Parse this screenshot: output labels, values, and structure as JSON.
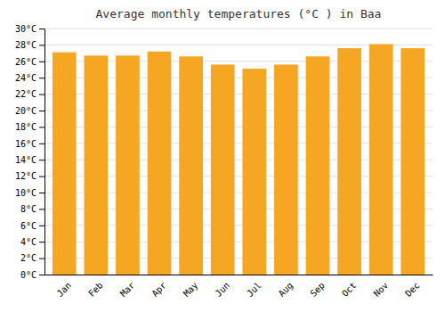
{
  "chart_data": {
    "type": "bar",
    "title": "Average monthly temperatures (°C ) in Baa",
    "categories": [
      "Jan",
      "Feb",
      "Mar",
      "Apr",
      "May",
      "Jun",
      "Jul",
      "Aug",
      "Sep",
      "Oct",
      "Nov",
      "Dec"
    ],
    "values": [
      27.1,
      26.7,
      26.7,
      27.2,
      26.6,
      25.6,
      25.1,
      25.6,
      26.6,
      27.6,
      28.1,
      27.6
    ],
    "color": "#F5A623",
    "ylim": [
      0,
      30
    ],
    "yticks": [
      {
        "value": 0,
        "label": "0°C"
      },
      {
        "value": 2,
        "label": "2°C"
      },
      {
        "value": 4,
        "label": "4°C"
      },
      {
        "value": 6,
        "label": "6°C"
      },
      {
        "value": 8,
        "label": "8°C"
      },
      {
        "value": 10,
        "label": "10°C"
      },
      {
        "value": 12,
        "label": "12°C"
      },
      {
        "value": 14,
        "label": "14°C"
      },
      {
        "value": 16,
        "label": "16°C"
      },
      {
        "value": 18,
        "label": "18°C"
      },
      {
        "value": 20,
        "label": "20°C"
      },
      {
        "value": 22,
        "label": "22°C"
      },
      {
        "value": 24,
        "label": "24°C"
      },
      {
        "value": 26,
        "label": "26°C"
      },
      {
        "value": 28,
        "label": "28°C"
      },
      {
        "value": 30,
        "label": "30°C"
      }
    ],
    "grid": true
  }
}
